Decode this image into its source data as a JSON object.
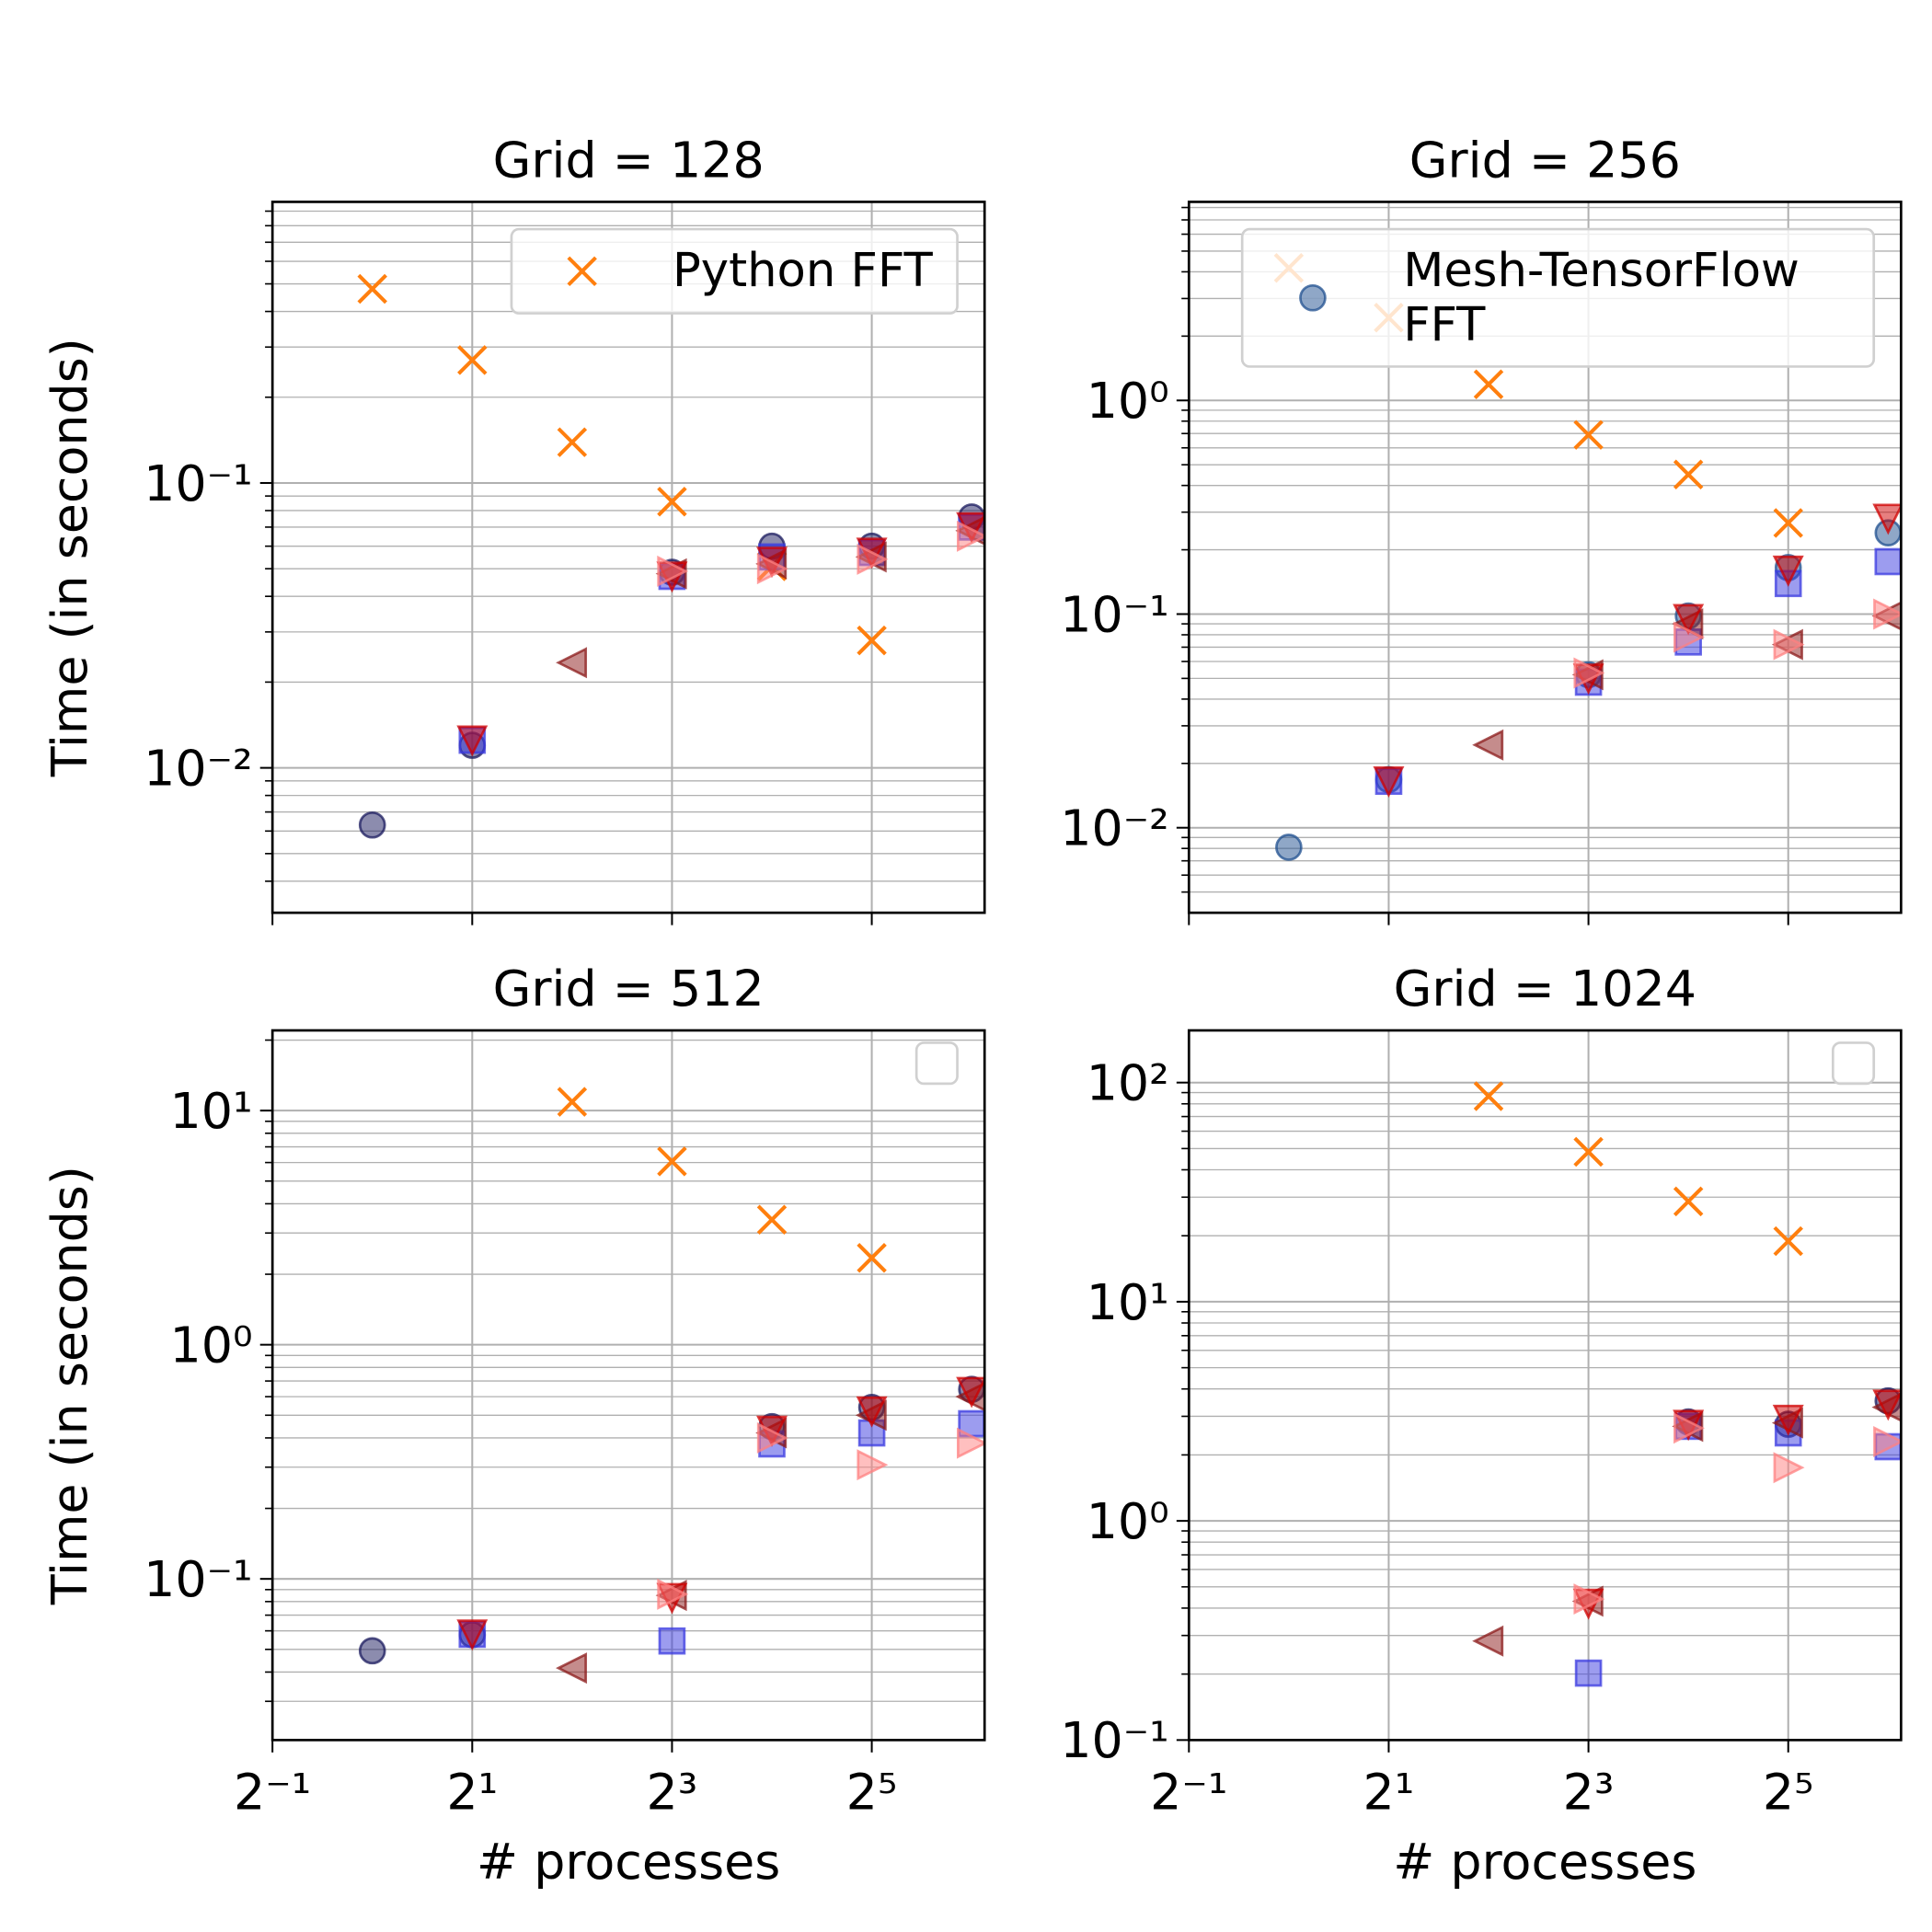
{
  "chart_data": [
    {
      "type": "scatter",
      "title": "Grid = 128",
      "ylabel": "Time (in seconds)",
      "xscale": "log",
      "yscale": "log",
      "grid": true,
      "minor_grid": true,
      "legend": "upper right",
      "x": [
        1,
        2,
        4,
        8,
        16,
        32,
        64
      ],
      "xlim": [
        0.5,
        70
      ],
      "ylim": [
        0.0031,
        0.97
      ],
      "xticks": [
        0.5,
        2,
        8,
        32
      ],
      "yticks": [
        {
          "value": 0.01,
          "label": "10⁻²"
        },
        {
          "value": 0.1,
          "label": "10⁻¹"
        }
      ],
      "series": [
        {
          "name": "Python FFT",
          "color": "#ff7f0e",
          "marker": "x",
          "values": [
            0.48,
            0.27,
            0.139,
            0.086,
            0.051,
            0.028,
            null
          ]
        },
        {
          "color": "#1a1a5e",
          "marker": "o",
          "values": [
            0.0063,
            0.012,
            null,
            0.0486,
            0.06,
            0.06,
            0.076
          ]
        },
        {
          "color": "#3a3ae0",
          "marker": "s",
          "values": [
            null,
            0.0125,
            null,
            0.047,
            0.055,
            0.057,
            0.07
          ]
        },
        {
          "color": "#8b1a1a",
          "marker": "<",
          "values": [
            null,
            null,
            0.0234,
            0.048,
            0.052,
            0.055,
            0.068
          ]
        },
        {
          "color": "#d00000",
          "marker": "v",
          "values": [
            null,
            0.0125,
            null,
            0.047,
            0.053,
            0.057,
            0.07
          ]
        },
        {
          "color": "#ff8080",
          "marker": ">",
          "values": [
            null,
            null,
            null,
            0.049,
            0.05,
            0.054,
            0.065
          ]
        }
      ]
    },
    {
      "type": "scatter",
      "title": "Grid = 256",
      "xscale": "log",
      "yscale": "log",
      "grid": true,
      "minor_grid": true,
      "legend": "upper right",
      "x": [
        1,
        2,
        4,
        8,
        16,
        32,
        64
      ],
      "xlim": [
        0.5,
        70
      ],
      "ylim": [
        0.004,
        8.5
      ],
      "xticks": [
        0.5,
        2,
        8,
        32
      ],
      "yticks": [
        {
          "value": 0.01,
          "label": "10⁻²"
        },
        {
          "value": 0.1,
          "label": "10⁻¹"
        },
        {
          "value": 1,
          "label": "10⁰"
        }
      ],
      "series": [
        {
          "color": "#ff7f0e",
          "marker": "x",
          "values": [
            4.17,
            2.44,
            1.19,
            0.69,
            0.45,
            0.267,
            null
          ]
        },
        {
          "name": "Mesh-TensorFlow FFT",
          "color": "#1f4f8f",
          "marker": "o",
          "values": [
            0.0081,
            0.0168,
            null,
            0.052,
            0.098,
            0.165,
            0.24
          ]
        },
        {
          "color": "#3a3ae0",
          "marker": "s",
          "values": [
            null,
            0.0165,
            null,
            0.048,
            0.074,
            0.139,
            0.176
          ]
        },
        {
          "color": "#8b1a1a",
          "marker": "<",
          "values": [
            null,
            null,
            0.0244,
            0.052,
            0.09,
            0.072,
            0.098
          ]
        },
        {
          "color": "#d00000",
          "marker": "v",
          "values": [
            null,
            0.0165,
            null,
            0.05,
            0.095,
            0.16,
            0.28
          ]
        },
        {
          "color": "#ff8080",
          "marker": ">",
          "values": [
            null,
            null,
            null,
            0.053,
            0.078,
            0.072,
            0.1
          ]
        }
      ]
    },
    {
      "type": "scatter",
      "title": "Grid = 512",
      "ylabel": "Time (in seconds)",
      "xlabel": "# processes",
      "xscale": "log",
      "yscale": "log",
      "grid": true,
      "minor_grid": true,
      "legend": "upper right",
      "x": [
        1,
        2,
        4,
        8,
        16,
        32,
        64
      ],
      "xlim": [
        0.5,
        70
      ],
      "ylim": [
        0.0205,
        22
      ],
      "xticks": [
        {
          "value": 0.5,
          "label": "2⁻¹"
        },
        {
          "value": 2,
          "label": "2¹"
        },
        {
          "value": 8,
          "label": "2³"
        },
        {
          "value": 32,
          "label": "2⁵"
        }
      ],
      "yticks": [
        {
          "value": 0.1,
          "label": "10⁻¹"
        },
        {
          "value": 1,
          "label": "10⁰"
        },
        {
          "value": 10,
          "label": "10¹"
        }
      ],
      "series": [
        {
          "color": "#ff7f0e",
          "marker": "x",
          "values": [
            null,
            null,
            10.9,
            6.07,
            3.42,
            2.35,
            null
          ]
        },
        {
          "color": "#1a1a5e",
          "marker": "o",
          "values": [
            0.0493,
            0.0578,
            null,
            null,
            0.447,
            0.54,
            0.645
          ]
        },
        {
          "color": "#3a3ae0",
          "marker": "s",
          "values": [
            null,
            0.058,
            null,
            0.0543,
            0.377,
            0.42,
            0.46
          ]
        },
        {
          "color": "#8b1a1a",
          "marker": "<",
          "values": [
            null,
            null,
            0.0416,
            0.085,
            0.42,
            0.5,
            0.6
          ]
        },
        {
          "color": "#d00000",
          "marker": "v",
          "values": [
            null,
            0.058,
            null,
            0.083,
            0.43,
            0.52,
            0.63
          ]
        },
        {
          "color": "#ff8080",
          "marker": ">",
          "values": [
            null,
            null,
            null,
            0.086,
            0.4,
            0.307,
            0.38
          ]
        }
      ]
    },
    {
      "type": "scatter",
      "title": "Grid = 1024",
      "xlabel": "# processes",
      "xscale": "log",
      "yscale": "log",
      "grid": true,
      "minor_grid": true,
      "legend": "upper right",
      "x": [
        1,
        2,
        4,
        8,
        16,
        32,
        64
      ],
      "xlim": [
        0.5,
        70
      ],
      "ylim": [
        0.1,
        173
      ],
      "xticks": [
        {
          "value": 0.5,
          "label": "2⁻¹"
        },
        {
          "value": 2,
          "label": "2¹"
        },
        {
          "value": 8,
          "label": "2³"
        },
        {
          "value": 32,
          "label": "2⁵"
        }
      ],
      "yticks": [
        {
          "value": 0.1,
          "label": "10⁻¹"
        },
        {
          "value": 1,
          "label": "10⁰"
        },
        {
          "value": 10,
          "label": "10¹"
        },
        {
          "value": 100,
          "label": "10²"
        }
      ],
      "series": [
        {
          "color": "#ff7f0e",
          "marker": "x",
          "values": [
            null,
            null,
            86.7,
            48.3,
            28.7,
            18.9,
            null
          ]
        },
        {
          "color": "#1a1a5e",
          "marker": "o",
          "values": [
            null,
            null,
            null,
            null,
            2.83,
            2.76,
            3.53
          ]
        },
        {
          "color": "#3a3ae0",
          "marker": "s",
          "values": [
            null,
            null,
            null,
            0.202,
            2.7,
            2.52,
            2.18
          ]
        },
        {
          "color": "#8b1a1a",
          "marker": "<",
          "values": [
            null,
            null,
            0.283,
            0.43,
            2.7,
            2.8,
            3.3
          ]
        },
        {
          "color": "#d00000",
          "marker": "v",
          "values": [
            null,
            null,
            null,
            0.42,
            2.75,
            2.9,
            3.4
          ]
        },
        {
          "color": "#ff8080",
          "marker": ">",
          "values": [
            null,
            null,
            null,
            0.44,
            2.65,
            1.75,
            2.3
          ]
        }
      ]
    }
  ]
}
